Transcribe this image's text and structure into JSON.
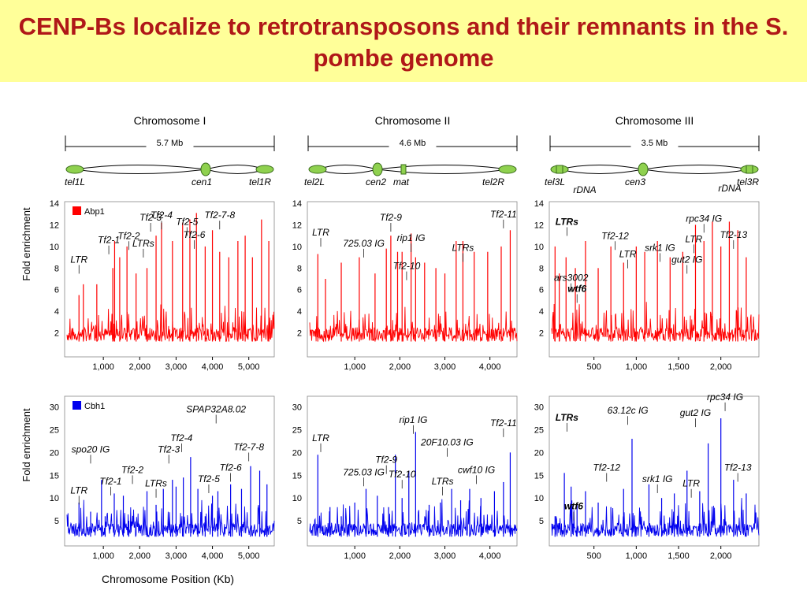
{
  "title": "CENP-Bs localize to retrotransposons and their remnants in the S. pombe genome",
  "x_axis_label": "Chromosome Position (Kb)",
  "y_axis_label": "Fold enrichment",
  "colors": {
    "title": "#b01818",
    "title_band": "#ffff99",
    "abp1": "#ff0000",
    "cbh1": "#0000ee",
    "centromere": "#8fd14f"
  },
  "chromosomes": [
    {
      "name": "Chromosome I",
      "size": "5.7 Mb",
      "labels": [
        "tel1L",
        "cen1",
        "tel1R"
      ]
    },
    {
      "name": "Chromosome II",
      "size": "4.6 Mb",
      "labels": [
        "tel2L",
        "cen2",
        "mat",
        "tel2R"
      ]
    },
    {
      "name": "Chromosome III",
      "size": "3.5 Mb",
      "labels": [
        "tel3L",
        "rDNA",
        "cen3",
        "rDNA",
        "tel3R"
      ]
    }
  ],
  "chart_data": [
    {
      "type": "line",
      "protein": "Abp1",
      "chromosome": "Chromosome I",
      "color": "#ff0000",
      "ylim": [
        0,
        14
      ],
      "yticks": [
        2,
        4,
        6,
        8,
        10,
        12,
        14
      ],
      "xticks": [
        1000,
        2000,
        3000,
        4000,
        5000
      ],
      "x_range_kb": [
        0,
        5700
      ],
      "baseline": 1.2,
      "peaks": [
        [
          330,
          5.5
        ],
        [
          450,
          6.5
        ],
        [
          820,
          6.5
        ],
        [
          1260,
          8.0
        ],
        [
          1310,
          10.5
        ],
        [
          1450,
          9.0
        ],
        [
          1650,
          10.0
        ],
        [
          1900,
          7.5
        ],
        [
          2200,
          8.0
        ],
        [
          2450,
          11.0
        ],
        [
          2600,
          12.2
        ],
        [
          2900,
          10.5
        ],
        [
          3180,
          12.2
        ],
        [
          3380,
          12.5
        ],
        [
          3560,
          13.1
        ],
        [
          3800,
          10.0
        ],
        [
          4000,
          11.5
        ],
        [
          4200,
          9.5
        ],
        [
          4450,
          9.0
        ],
        [
          4700,
          10.5
        ],
        [
          4900,
          11.0
        ],
        [
          5100,
          9.0
        ],
        [
          5350,
          12.5
        ],
        [
          5550,
          10.5
        ]
      ],
      "annotations": [
        {
          "text": "LTR",
          "x": 330,
          "y": 8.5
        },
        {
          "text": "Tf2-1",
          "x": 1150,
          "y": 10.3
        },
        {
          "text": "Tf2-2",
          "x": 1700,
          "y": 10.7
        },
        {
          "text": "LTRs",
          "x": 2100,
          "y": 10.0
        },
        {
          "text": "Tf2-3",
          "x": 2300,
          "y": 12.4
        },
        {
          "text": "Tf2-4",
          "x": 2600,
          "y": 12.6
        },
        {
          "text": "Tf2-5",
          "x": 3300,
          "y": 12.0
        },
        {
          "text": "Tf2-6",
          "x": 3500,
          "y": 10.8
        },
        {
          "text": "Tf2-7-8",
          "x": 4200,
          "y": 12.6
        }
      ]
    },
    {
      "type": "line",
      "protein": "Abp1",
      "chromosome": "Chromosome II",
      "color": "#ff0000",
      "ylim": [
        0,
        14
      ],
      "yticks": [
        2,
        4,
        6,
        8,
        10,
        12,
        14
      ],
      "xticks": [
        1000,
        2000,
        3000,
        4000
      ],
      "x_range_kb": [
        0,
        4600
      ],
      "baseline": 1.2,
      "peaks": [
        [
          180,
          9.3
        ],
        [
          350,
          7.0
        ],
        [
          700,
          8.5
        ],
        [
          1100,
          9.0
        ],
        [
          1450,
          7.5
        ],
        [
          1700,
          9.8
        ],
        [
          1800,
          11.0
        ],
        [
          1950,
          9.5
        ],
        [
          2050,
          9.5
        ],
        [
          2250,
          11.2
        ],
        [
          2350,
          9.0
        ],
        [
          2550,
          8.5
        ],
        [
          2800,
          8.0
        ],
        [
          3000,
          7.5
        ],
        [
          3250,
          10.5
        ],
        [
          3400,
          10.5
        ],
        [
          3650,
          9.5
        ],
        [
          3950,
          9.5
        ],
        [
          4250,
          10.0
        ],
        [
          4450,
          11.5
        ]
      ],
      "annotations": [
        {
          "text": "LTR",
          "x": 180,
          "y": 11.0
        },
        {
          "text": "725.03 IG",
          "x": 1200,
          "y": 10.0
        },
        {
          "text": "Tf2-9",
          "x": 1800,
          "y": 12.4
        },
        {
          "text": "rip1 IG",
          "x": 2250,
          "y": 10.5
        },
        {
          "text": "Tf2-10",
          "x": 2150,
          "y": 7.9
        },
        {
          "text": "LTRs",
          "x": 3400,
          "y": 9.6
        },
        {
          "text": "Tf2-11",
          "x": 4300,
          "y": 12.7
        }
      ]
    },
    {
      "type": "line",
      "protein": "Abp1",
      "chromosome": "Chromosome III",
      "color": "#ff0000",
      "ylim": [
        0,
        14
      ],
      "yticks": [
        2,
        4,
        6,
        8,
        10,
        12,
        14
      ],
      "xticks": [
        500,
        1000,
        1500,
        2000
      ],
      "x_range_kb": [
        0,
        2450
      ],
      "baseline": 1.2,
      "peaks": [
        [
          40,
          10.0
        ],
        [
          90,
          7.5
        ],
        [
          170,
          9.0
        ],
        [
          280,
          8.0
        ],
        [
          400,
          10.5
        ],
        [
          550,
          8.0
        ],
        [
          700,
          10.0
        ],
        [
          850,
          8.5
        ],
        [
          1000,
          10.0
        ],
        [
          1100,
          9.5
        ],
        [
          1250,
          10.5
        ],
        [
          1400,
          9.0
        ],
        [
          1550,
          9.5
        ],
        [
          1700,
          12.0
        ],
        [
          1800,
          10.5
        ],
        [
          1900,
          12.3
        ],
        [
          2000,
          10.0
        ],
        [
          2100,
          12.3
        ],
        [
          2200,
          11.5
        ],
        [
          2300,
          9.0
        ]
      ],
      "annotations": [
        {
          "text": "LTRs",
          "x": 180,
          "y": 12.0
        },
        {
          "text": "ars3002",
          "x": 230,
          "y": 6.8
        },
        {
          "text": "wtf6",
          "x": 300,
          "y": 5.8
        },
        {
          "text": "Tf2-12",
          "x": 750,
          "y": 10.7
        },
        {
          "text": "LTR",
          "x": 900,
          "y": 9.0
        },
        {
          "text": "srk1 IG",
          "x": 1280,
          "y": 9.6
        },
        {
          "text": "LTR",
          "x": 1680,
          "y": 10.4
        },
        {
          "text": "rpc34 IG",
          "x": 1800,
          "y": 12.3
        },
        {
          "text": "gut2 IG",
          "x": 1600,
          "y": 8.5
        },
        {
          "text": "Tf2-13",
          "x": 2150,
          "y": 10.8
        }
      ]
    },
    {
      "type": "line",
      "protein": "Cbh1",
      "chromosome": "Chromosome I",
      "color": "#0000ee",
      "ylim": [
        0,
        32
      ],
      "yticks": [
        5,
        10,
        15,
        20,
        25,
        30
      ],
      "xticks": [
        1000,
        2000,
        3000,
        4000,
        5000
      ],
      "x_range_kb": [
        0,
        5700
      ],
      "baseline": 1.5,
      "peaks": [
        [
          330,
          9.0
        ],
        [
          650,
          7.0
        ],
        [
          950,
          14.0
        ],
        [
          1050,
          6.0
        ],
        [
          1300,
          11.0
        ],
        [
          1550,
          10.5
        ],
        [
          1700,
          5.0
        ],
        [
          2200,
          11.5
        ],
        [
          2450,
          8.5
        ],
        [
          2650,
          12.0
        ],
        [
          2900,
          14.0
        ],
        [
          3000,
          12.5
        ],
        [
          3200,
          14.5
        ],
        [
          3400,
          19.0
        ],
        [
          3600,
          12.0
        ],
        [
          3800,
          6.0
        ],
        [
          4000,
          10.5
        ],
        [
          4150,
          11.5
        ],
        [
          4500,
          13.0
        ],
        [
          4800,
          12.0
        ],
        [
          5050,
          17.0
        ],
        [
          5300,
          16.0
        ],
        [
          5500,
          13.0
        ]
      ],
      "annotations": [
        {
          "text": "LTR",
          "x": 330,
          "y": 11.0
        },
        {
          "text": "spo20 IG",
          "x": 650,
          "y": 20.0
        },
        {
          "text": "Tf2-1",
          "x": 1200,
          "y": 13.0
        },
        {
          "text": "Tf2-2",
          "x": 1800,
          "y": 15.5
        },
        {
          "text": "LTRs",
          "x": 2450,
          "y": 12.5
        },
        {
          "text": "Tf2-3",
          "x": 2800,
          "y": 20.0
        },
        {
          "text": "Tf2-4",
          "x": 3150,
          "y": 22.5
        },
        {
          "text": "SPAP32A8.02",
          "x": 4100,
          "y": 28.8
        },
        {
          "text": "Tf2-5",
          "x": 3900,
          "y": 13.5
        },
        {
          "text": "Tf2-6",
          "x": 4500,
          "y": 16.0
        },
        {
          "text": "Tf2-7-8",
          "x": 5000,
          "y": 20.5
        }
      ]
    },
    {
      "type": "line",
      "protein": "Cbh1",
      "chromosome": "Chromosome II",
      "color": "#0000ee",
      "ylim": [
        0,
        32
      ],
      "yticks": [
        5,
        10,
        15,
        20,
        25,
        30
      ],
      "xticks": [
        1000,
        2000,
        3000,
        4000
      ],
      "x_range_kb": [
        0,
        4600
      ],
      "baseline": 1.5,
      "peaks": [
        [
          180,
          19.5
        ],
        [
          450,
          8.0
        ],
        [
          700,
          6.0
        ],
        [
          1000,
          9.0
        ],
        [
          1250,
          12.0
        ],
        [
          1500,
          10.5
        ],
        [
          1750,
          8.0
        ],
        [
          1900,
          19.5
        ],
        [
          2050,
          10.0
        ],
        [
          2200,
          16.0
        ],
        [
          2350,
          24.5
        ],
        [
          2650,
          8.5
        ],
        [
          2900,
          9.0
        ],
        [
          3150,
          12.0
        ],
        [
          3350,
          9.5
        ],
        [
          3550,
          12.0
        ],
        [
          3800,
          10.0
        ],
        [
          4100,
          11.5
        ],
        [
          4300,
          13.5
        ],
        [
          4450,
          20.0
        ]
      ],
      "annotations": [
        {
          "text": "LTR",
          "x": 180,
          "y": 22.5
        },
        {
          "text": "725.03 IG",
          "x": 1200,
          "y": 15.0
        },
        {
          "text": "Tf2-9",
          "x": 1700,
          "y": 17.7
        },
        {
          "text": "Tf2-10",
          "x": 2050,
          "y": 14.5
        },
        {
          "text": "rip1 IG",
          "x": 2300,
          "y": 26.5
        },
        {
          "text": "20F10.03 IG",
          "x": 3050,
          "y": 21.5
        },
        {
          "text": "LTRs",
          "x": 2950,
          "y": 13.0
        },
        {
          "text": "cwf10 IG",
          "x": 3700,
          "y": 15.5
        },
        {
          "text": "Tf2-11",
          "x": 4300,
          "y": 25.8
        }
      ]
    },
    {
      "type": "line",
      "protein": "Cbh1",
      "chromosome": "Chromosome III",
      "color": "#0000ee",
      "ylim": [
        0,
        32
      ],
      "yticks": [
        5,
        10,
        15,
        20,
        25,
        30
      ],
      "xticks": [
        500,
        1000,
        1500,
        2000
      ],
      "x_range_kb": [
        0,
        2450
      ],
      "baseline": 1.5,
      "peaks": [
        [
          40,
          6.0
        ],
        [
          150,
          15.5
        ],
        [
          230,
          12.5
        ],
        [
          300,
          9.0
        ],
        [
          400,
          11.5
        ],
        [
          550,
          9.0
        ],
        [
          700,
          8.0
        ],
        [
          850,
          12.0
        ],
        [
          950,
          23.0
        ],
        [
          1150,
          13.0
        ],
        [
          1300,
          10.0
        ],
        [
          1450,
          11.0
        ],
        [
          1600,
          16.0
        ],
        [
          1750,
          11.5
        ],
        [
          1850,
          22.0
        ],
        [
          2000,
          27.5
        ],
        [
          2150,
          14.0
        ],
        [
          2300,
          11.0
        ]
      ],
      "annotations": [
        {
          "text": "LTRs",
          "x": 180,
          "y": 27.0
        },
        {
          "text": "wtf6",
          "x": 260,
          "y": 7.5
        },
        {
          "text": "63.12c IG",
          "x": 900,
          "y": 28.5
        },
        {
          "text": "Tf2-12",
          "x": 650,
          "y": 16.0
        },
        {
          "text": "srk1 IG",
          "x": 1250,
          "y": 13.5
        },
        {
          "text": "LTR",
          "x": 1650,
          "y": 12.5
        },
        {
          "text": "gut2 IG",
          "x": 1700,
          "y": 28.0
        },
        {
          "text": "rpc34 IG",
          "x": 2050,
          "y": 31.5
        },
        {
          "text": "Tf2-13",
          "x": 2200,
          "y": 16.0
        }
      ]
    }
  ]
}
